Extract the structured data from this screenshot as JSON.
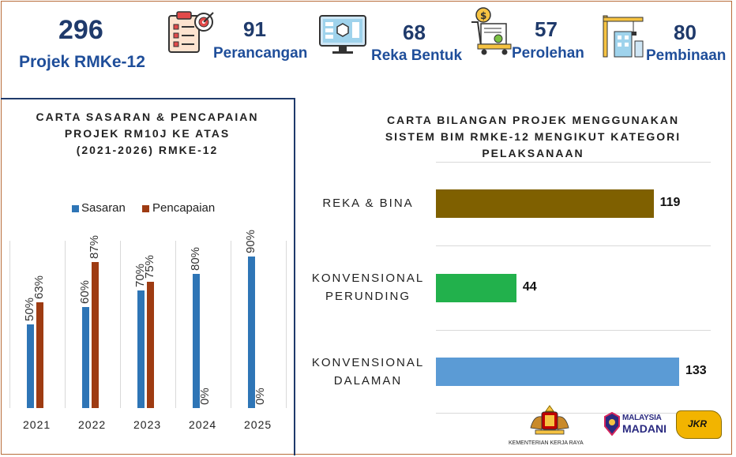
{
  "header": {
    "total": {
      "value": "296",
      "label": "Projek RMKe-12"
    },
    "stats": [
      {
        "value": "91",
        "label": "Perancangan",
        "icon": "clipboard-target-icon"
      },
      {
        "value": "68",
        "label": "Reka Bentuk",
        "icon": "monitor-design-icon"
      },
      {
        "value": "57",
        "label": "Perolehan",
        "icon": "cart-procurement-icon"
      },
      {
        "value": "80",
        "label": "Pembinaan",
        "icon": "crane-construction-icon"
      }
    ]
  },
  "left_chart": {
    "title_lines": [
      "CARTA SASARAN & PENCAPAIAN",
      "PROJEK RM10J KE ATAS",
      "(2021-2026) RMKE-12"
    ],
    "legend": [
      "Sasaran",
      "Pencapaian"
    ]
  },
  "right_chart": {
    "title_lines": [
      "CARTA BILANGAN PROJEK MENGGUNAKAN",
      "SISTEM BIM RMKE-12 MENGIKUT KATEGORI",
      "PELAKSANAAN"
    ]
  },
  "chart_data": [
    {
      "type": "bar",
      "title": "CARTA SASARAN & PENCAPAIAN PROJEK RM10J KE ATAS (2021-2026) RMKE-12",
      "categories": [
        "2021",
        "2022",
        "2023",
        "2024",
        "2025"
      ],
      "series": [
        {
          "name": "Sasaran",
          "values": [
            50,
            60,
            70,
            80,
            90
          ],
          "labels": [
            "50%",
            "60%",
            "70%",
            "80%",
            "90%"
          ],
          "color": "#2e75b6"
        },
        {
          "name": "Pencapaian",
          "values": [
            63,
            87,
            75,
            0,
            0
          ],
          "labels": [
            "63%",
            "87%",
            "75%",
            "0%",
            "0%"
          ],
          "color": "#9e3b12"
        }
      ],
      "ylim": [
        0,
        100
      ],
      "legend": "top"
    },
    {
      "type": "bar",
      "orientation": "horizontal",
      "title": "CARTA BILANGAN PROJEK MENGGUNAKAN SISTEM BIM RMKE-12 MENGIKUT KATEGORI PELAKSANAAN",
      "categories": [
        [
          "REKA & BINA"
        ],
        [
          "KONVENSIONAL",
          "PERUNDING"
        ],
        [
          "KONVENSIONAL",
          "DALAMAN"
        ]
      ],
      "values": [
        119,
        44,
        133
      ],
      "colors": [
        "#7f6000",
        "#22b14c",
        "#5b9bd5"
      ],
      "xlim": [
        0,
        133
      ]
    }
  ],
  "logos": {
    "kkr": "KEMENTERIAN KERJA RAYA",
    "madani": [
      "MALAYSIA",
      "MADANI"
    ],
    "jkr": "JKR"
  }
}
